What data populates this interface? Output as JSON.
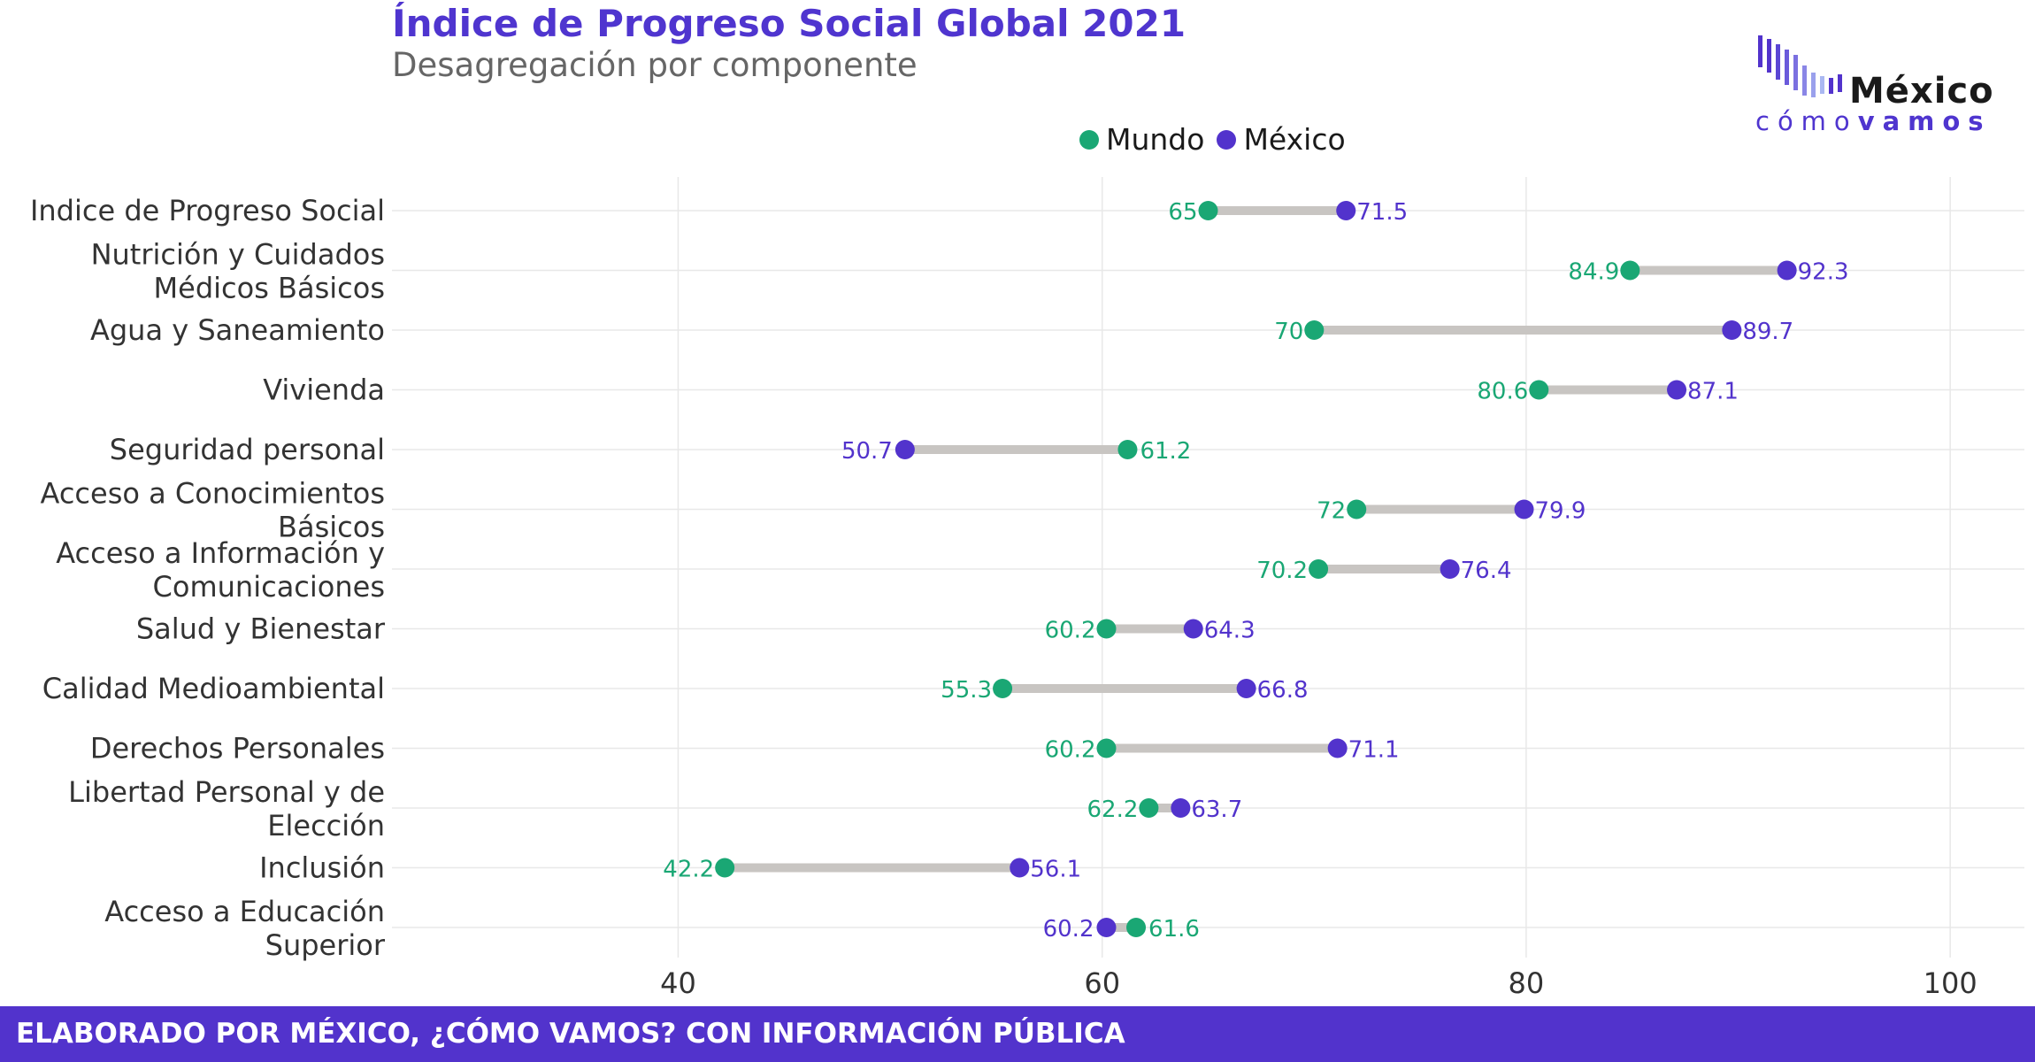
{
  "title": "Índice de Progreso Social Global 2021",
  "subtitle": "Desagregación por componente",
  "logo": {
    "word": "México",
    "sub_light": "cómo",
    "sub_bold": "vamos"
  },
  "legend": [
    {
      "label": "Mundo",
      "color": "#1aa774"
    },
    {
      "label": "México",
      "color": "#5233cc"
    }
  ],
  "footer": "ELABORADO POR MÉXICO, ¿CÓMO VAMOS? CON INFORMACIÓN PÚBLICA",
  "colors": {
    "mundo": "#1aa774",
    "mexico": "#5233cc",
    "segment": "#c8c5c2",
    "grid": "#e8e8e8",
    "footer_bg": "#5233cc"
  },
  "chart_data": {
    "type": "dumbbell",
    "xlim": [
      26.5,
      103.5
    ],
    "x_ticks": [
      40,
      60,
      80,
      100
    ],
    "grid": true,
    "legend_position": "top",
    "series": [
      {
        "name": "Mundo",
        "values": [
          65,
          84.9,
          70,
          80.6,
          61.2,
          72,
          70.2,
          60.2,
          55.3,
          60.2,
          62.2,
          42.2,
          61.6
        ]
      },
      {
        "name": "México",
        "values": [
          71.5,
          92.3,
          89.7,
          87.1,
          50.7,
          79.9,
          76.4,
          64.3,
          66.8,
          71.1,
          63.7,
          56.1,
          60.2
        ]
      }
    ],
    "categories": [
      "Indice de Progreso Social",
      "Nutrición y Cuidados Médicos Básicos",
      "Agua y Saneamiento",
      "Vivienda",
      "Seguridad personal",
      "Acceso a Conocimientos Básicos",
      "Acceso a Información y Comunicaciones",
      "Salud y Bienestar",
      "Calidad Medioambiental",
      "Derechos Personales",
      "Libertad Personal y de Elección",
      "Inclusión",
      "Acceso a Educación Superior"
    ],
    "category_lines": [
      [
        "Indice de Progreso Social"
      ],
      [
        "Nutrición y Cuidados",
        "Médicos Básicos"
      ],
      [
        "Agua y Saneamiento"
      ],
      [
        "Vivienda"
      ],
      [
        "Seguridad personal"
      ],
      [
        "Acceso a Conocimientos",
        "Básicos"
      ],
      [
        "Acceso a Información y",
        "Comunicaciones"
      ],
      [
        "Salud y Bienestar"
      ],
      [
        "Calidad Medioambiental"
      ],
      [
        "Derechos Personales"
      ],
      [
        "Libertad Personal y de",
        "Elección"
      ],
      [
        "Inclusión"
      ],
      [
        "Acceso a Educación",
        "Superior"
      ]
    ],
    "data_labels": {
      "mundo": [
        "65",
        "84.9",
        "70",
        "80.6",
        "61.2",
        "72",
        "70.2",
        "60.2",
        "55.3",
        "60.2",
        "62.2",
        "42.2",
        "61.6"
      ],
      "mexico": [
        "71.5",
        "92.3",
        "89.7",
        "87.1",
        "50.7",
        "79.9",
        "76.4",
        "64.3",
        "66.8",
        "71.1",
        "63.7",
        "56.1",
        "60.2"
      ]
    }
  }
}
